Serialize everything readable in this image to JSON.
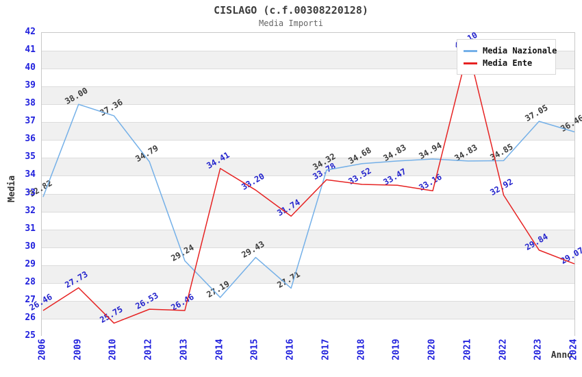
{
  "chart_data": {
    "type": "line",
    "title": "CISLAGO (c.f.00308220128)",
    "subtitle": "Media Importi",
    "xlabel": "Anno",
    "ylabel": "Media",
    "ylim": [
      25,
      42
    ],
    "ytick_step": 1,
    "grid": "horizontal gridlines with alternating white/gray unit bands",
    "legend_position": "top-right",
    "categories": [
      "2006",
      "2009",
      "2010",
      "2012",
      "2013",
      "2014",
      "2015",
      "2016",
      "2017",
      "2018",
      "2019",
      "2020",
      "2021",
      "2022",
      "2023",
      "2024"
    ],
    "series": [
      {
        "name": "Media Nazionale",
        "color": "#74b0e8",
        "label_color": "#3c3c3c",
        "values": [
          32.82,
          38.0,
          37.36,
          34.79,
          29.24,
          27.19,
          29.43,
          27.71,
          34.32,
          34.68,
          34.83,
          34.94,
          34.83,
          34.85,
          37.05,
          36.46
        ]
      },
      {
        "name": "Media Ente",
        "color": "#e62222",
        "label_color": "#2323cc",
        "values": [
          26.46,
          27.73,
          25.75,
          26.53,
          26.46,
          34.41,
          33.2,
          31.74,
          33.78,
          33.52,
          33.47,
          33.16,
          41.1,
          32.92,
          29.84,
          29.07
        ]
      }
    ],
    "colors": {
      "tick_label": "#2020dd",
      "axis_title": "#333333",
      "title": "#3c3c3c",
      "subtitle": "#666666",
      "band": "#f0f0f0",
      "gridline": "#dcdcdc",
      "plot_border": "#c8c8c8"
    }
  }
}
